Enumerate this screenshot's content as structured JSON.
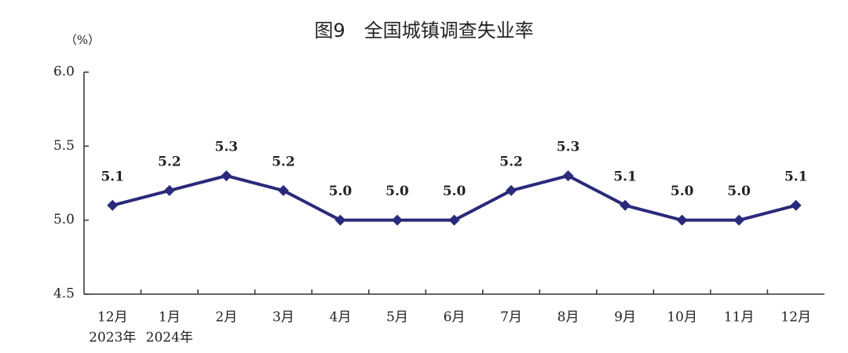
{
  "chart_data": {
    "type": "line",
    "title": "图9　全国城镇调查失业率",
    "y_unit": "（%）",
    "categories": [
      "12月",
      "1月",
      "2月",
      "3月",
      "4月",
      "5月",
      "6月",
      "7月",
      "8月",
      "9月",
      "10月",
      "11月",
      "12月"
    ],
    "year_labels": [
      "2023年",
      "2024年"
    ],
    "series": [
      {
        "name": "全国城镇调查失业率",
        "color": "#2a2a7c",
        "values": [
          5.1,
          5.2,
          5.3,
          5.2,
          5.0,
          5.0,
          5.0,
          5.2,
          5.3,
          5.1,
          5.0,
          5.0,
          5.1
        ],
        "value_labels": [
          "5.1",
          "5.2",
          "5.3",
          "5.2",
          "5.0",
          "5.0",
          "5.0",
          "5.2",
          "5.3",
          "5.1",
          "5.0",
          "5.0",
          "5.1"
        ]
      }
    ],
    "ylim": [
      4.5,
      6.0
    ],
    "yticks": [
      4.5,
      {
        "value": 5,
        "label": "5.0"
      },
      5.5,
      {
        "value": 6,
        "label": "6.0"
      }
    ],
    "grid": false
  }
}
